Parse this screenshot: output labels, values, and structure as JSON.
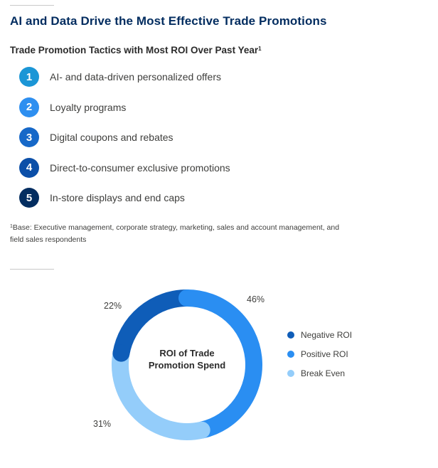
{
  "header": {
    "title": "AI and Data Drive the Most Effective Trade Promotions",
    "subtitle": "Trade Promotion Tactics with Most ROI Over Past Year",
    "subtitle_marker": "1"
  },
  "tactics": [
    {
      "rank": "1",
      "label": "AI- and data-driven personalized offers",
      "color": "#1b96d6"
    },
    {
      "rank": "2",
      "label": "Loyalty programs",
      "color": "#2e8ff0"
    },
    {
      "rank": "3",
      "label": "Digital coupons and rebates",
      "color": "#1668c8"
    },
    {
      "rank": "4",
      "label": "Direct-to-consumer exclusive promotions",
      "color": "#0b4fa8"
    },
    {
      "rank": "5",
      "label": "In-store displays and end caps",
      "color": "#032d60"
    }
  ],
  "footnote": {
    "marker": "1",
    "text": "Base: Executive management, corporate strategy, marketing, sales and account management, and field sales respondents"
  },
  "chart_data": {
    "type": "pie",
    "variant": "donut",
    "center_label": "ROI of Trade Promotion Spend",
    "slices": [
      {
        "name": "Positive ROI",
        "value": 46,
        "label": "46%",
        "color": "#2a8ef2"
      },
      {
        "name": "Break Even",
        "value": 31,
        "label": "31%",
        "color": "#94cdfa"
      },
      {
        "name": "Negative ROI",
        "value": 22,
        "label": "22%",
        "color": "#0f5db8"
      }
    ],
    "legend": [
      "Negative ROI",
      "Positive ROI",
      "Break Even"
    ],
    "legend_position": "right"
  }
}
